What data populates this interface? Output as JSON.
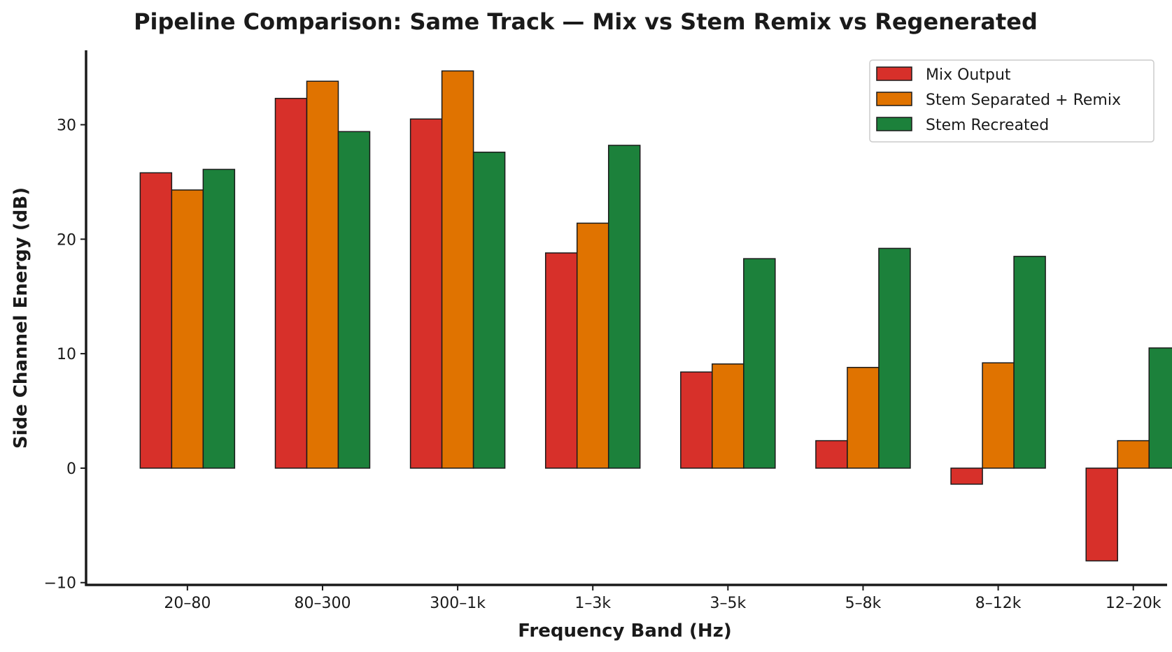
{
  "chart_data": {
    "type": "bar",
    "title": "Pipeline Comparison: Same Track — Mix vs Stem Remix vs Regenerated",
    "xlabel": "Frequency Band (Hz)",
    "ylabel": "Side Channel Energy (dB)",
    "categories": [
      "20–80",
      "80–300",
      "300–1k",
      "1–3k",
      "3–5k",
      "5–8k",
      "8–12k",
      "12–20k"
    ],
    "series": [
      {
        "name": "Mix Output",
        "color": "#d7302a",
        "values": [
          25.8,
          32.3,
          30.5,
          18.8,
          8.4,
          2.4,
          -1.4,
          -8.1
        ]
      },
      {
        "name": "Stem Separated + Remix",
        "color": "#e07300",
        "values": [
          24.3,
          33.8,
          34.7,
          21.4,
          9.1,
          8.8,
          9.2,
          2.4
        ]
      },
      {
        "name": "Stem Recreated",
        "color": "#1c813b",
        "values": [
          26.1,
          29.4,
          27.6,
          28.2,
          18.3,
          19.2,
          18.5,
          10.5
        ]
      }
    ],
    "ylim": [
      -10.2,
      36.5
    ],
    "yticks": [
      -10,
      0,
      10,
      20,
      30
    ],
    "ytick_labels": [
      "−10",
      "0",
      "10",
      "20",
      "30"
    ],
    "grid": false,
    "legend_position": "top-right"
  }
}
